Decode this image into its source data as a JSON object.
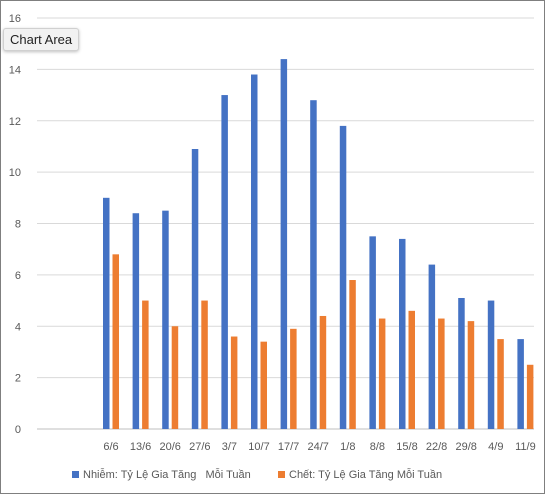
{
  "tooltip": {
    "label": "Chart Area"
  },
  "chart_data": {
    "type": "bar",
    "title": "",
    "xlabel": "",
    "ylabel": "",
    "ylim": [
      0,
      16
    ],
    "yticks": [
      0,
      2,
      4,
      6,
      8,
      10,
      12,
      14,
      16
    ],
    "grid": true,
    "legend_position": "bottom",
    "categories": [
      "6/6",
      "13/6",
      "20/6",
      "27/6",
      "3/7",
      "10/7",
      "17/7",
      "24/7",
      "1/8",
      "8/8",
      "15/8",
      "22/8",
      "29/8",
      "4/9",
      "11/9"
    ],
    "series": [
      {
        "name": "Nhiễm: Tỷ Lệ Gia Tăng   Mỗi Tuần",
        "color": "#4472c4",
        "values": [
          9.0,
          8.4,
          8.5,
          10.9,
          13.0,
          13.8,
          14.4,
          12.8,
          11.8,
          7.5,
          7.4,
          6.4,
          5.1,
          5.0,
          3.5
        ]
      },
      {
        "name": "Chết: Tỷ Lệ Gia Tăng Mỗi Tuần",
        "color": "#ed7d31",
        "values": [
          6.8,
          5.0,
          4.0,
          5.0,
          3.6,
          3.4,
          3.9,
          4.4,
          5.8,
          4.3,
          4.6,
          4.3,
          4.2,
          3.5,
          2.5
        ]
      }
    ]
  }
}
